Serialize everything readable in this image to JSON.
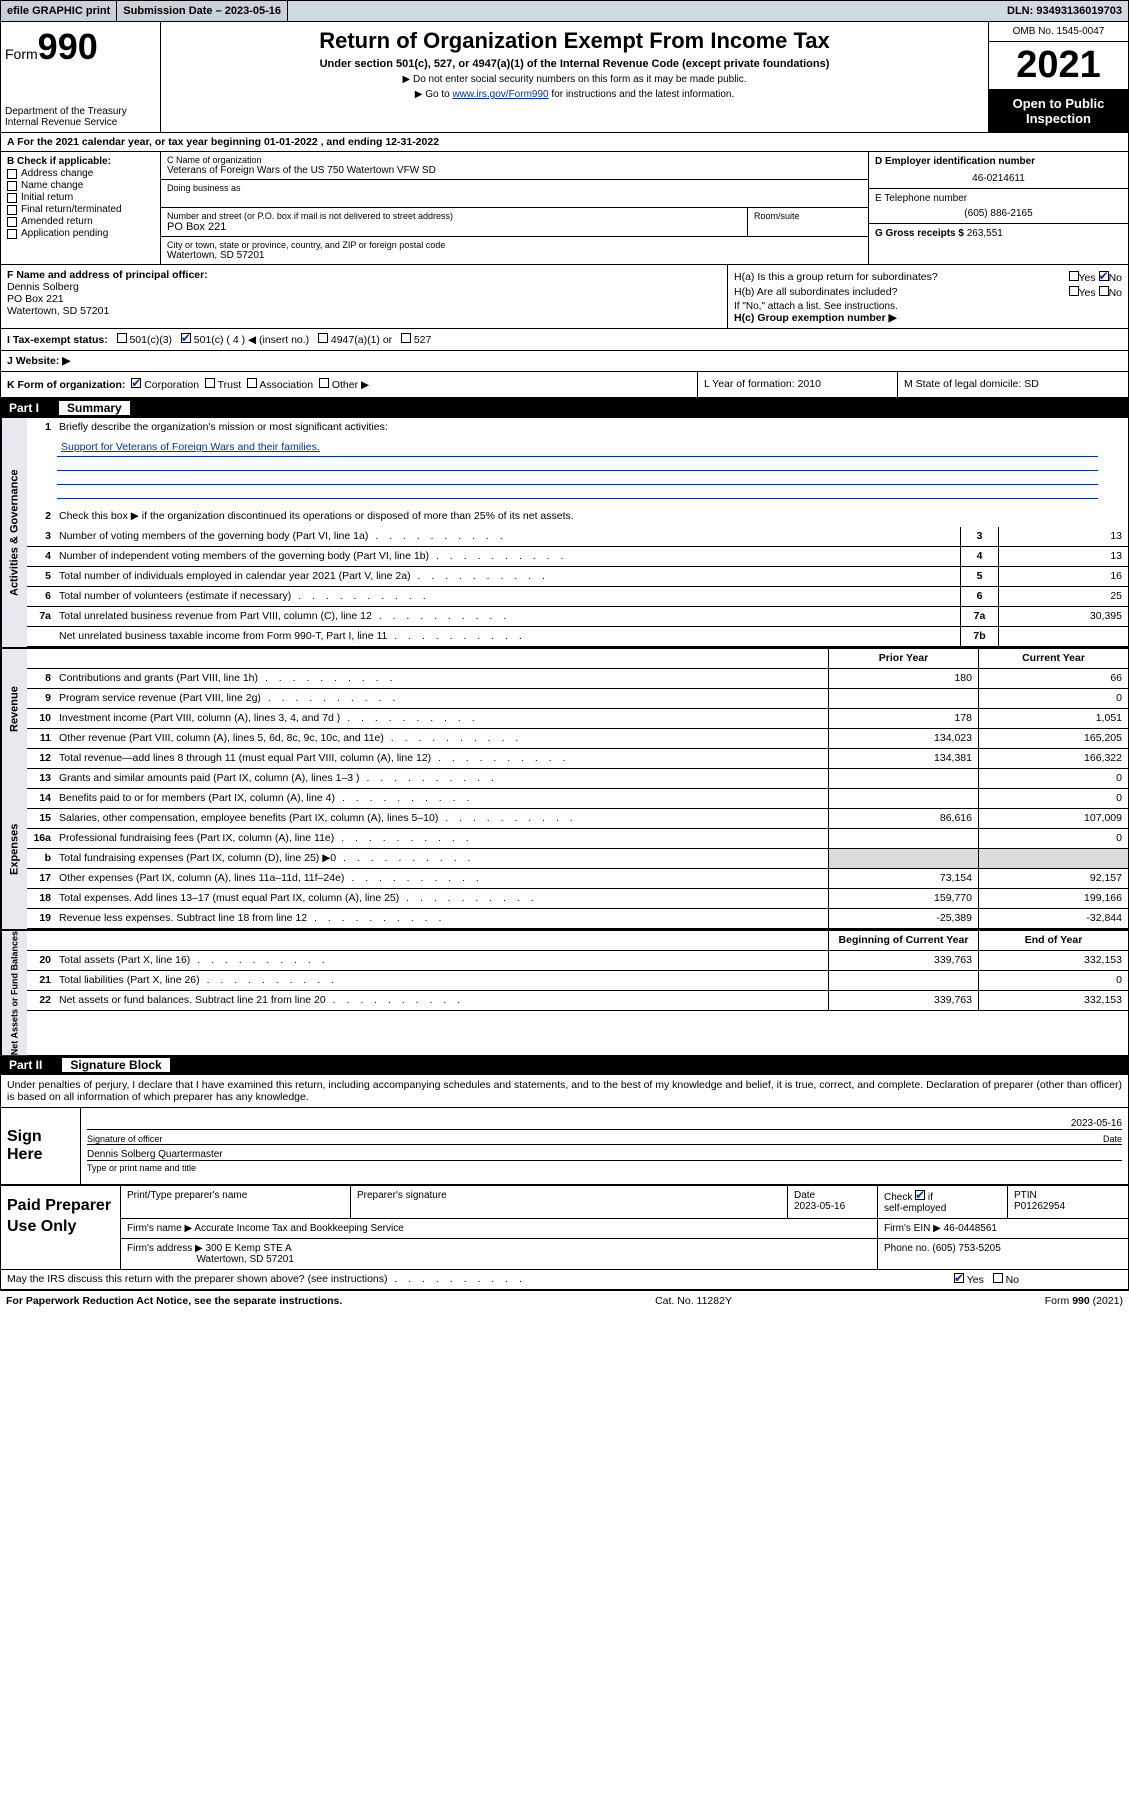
{
  "topbar": {
    "efile": "efile GRAPHIC print",
    "submission_label": "Submission Date – 2023-05-16",
    "dln": "DLN: 93493136019703"
  },
  "header": {
    "form_word": "Form",
    "form_num": "990",
    "dept": "Department of the Treasury\nInternal Revenue Service",
    "title": "Return of Organization Exempt From Income Tax",
    "sub": "Under section 501(c), 527, or 4947(a)(1) of the Internal Revenue Code (except private foundations)",
    "inst1": "▶ Do not enter social security numbers on this form as it may be made public.",
    "inst2_pre": "▶ Go to ",
    "inst2_link": "www.irs.gov/Form990",
    "inst2_post": " for instructions and the latest information.",
    "omb": "OMB No. 1545-0047",
    "year": "2021",
    "open": "Open to Public Inspection"
  },
  "row_a": "A For the 2021 calendar year, or tax year beginning 01-01-2022   , and ending 12-31-2022",
  "col_b": {
    "label": "B Check if applicable:",
    "items": [
      "Address change",
      "Name change",
      "Initial return",
      "Final return/terminated",
      "Amended return",
      "Application pending"
    ]
  },
  "col_c": {
    "name_label": "C Name of organization",
    "name": "Veterans of Foreign Wars of the US 750 Watertown VFW SD",
    "dba_label": "Doing business as",
    "addr_label": "Number and street (or P.O. box if mail is not delivered to street address)",
    "room_label": "Room/suite",
    "addr": "PO Box 221",
    "city_label": "City or town, state or province, country, and ZIP or foreign postal code",
    "city": "Watertown, SD  57201"
  },
  "col_d": {
    "ein_label": "D Employer identification number",
    "ein": "46-0214611",
    "phone_label": "E Telephone number",
    "phone": "(605) 886-2165",
    "gross_label": "G Gross receipts $",
    "gross": "263,551"
  },
  "sec_f": {
    "label": "F  Name and address of principal officer:",
    "name": "Dennis Solberg",
    "addr1": "PO Box 221",
    "addr2": "Watertown, SD  57201"
  },
  "sec_h": {
    "ha": "H(a)  Is this a group return for subordinates?",
    "hb": "H(b)  Are all subordinates included?",
    "hb_note": "If \"No,\" attach a list. See instructions.",
    "hc": "H(c)  Group exemption number ▶",
    "yes": "Yes",
    "no": "No"
  },
  "sec_i": {
    "label": "I    Tax-exempt status:",
    "o1": "501(c)(3)",
    "o2": "501(c) ( 4 ) ◀ (insert no.)",
    "o3": "4947(a)(1) or",
    "o4": "527"
  },
  "sec_j": "J    Website: ▶",
  "sec_k": {
    "left_label": "K Form of organization:",
    "corp": "Corporation",
    "trust": "Trust",
    "assoc": "Association",
    "other": "Other ▶",
    "mid": "L Year of formation: 2010",
    "right": "M State of legal domicile: SD"
  },
  "part1": {
    "num": "Part I",
    "title": "Summary"
  },
  "summary": {
    "l1": "Briefly describe the organization's mission or most significant activities:",
    "mission": "Support for Veterans of Foreign Wars and their families.",
    "l2": "Check this box ▶        if the organization discontinued its operations or disposed of more than 25% of its net assets.",
    "rows_single": [
      {
        "n": "3",
        "t": "Number of voting members of the governing body (Part VI, line 1a)",
        "c": "3",
        "v": "13"
      },
      {
        "n": "4",
        "t": "Number of independent voting members of the governing body (Part VI, line 1b)",
        "c": "4",
        "v": "13"
      },
      {
        "n": "5",
        "t": "Total number of individuals employed in calendar year 2021 (Part V, line 2a)",
        "c": "5",
        "v": "16"
      },
      {
        "n": "6",
        "t": "Total number of volunteers (estimate if necessary)",
        "c": "6",
        "v": "25"
      },
      {
        "n": "7a",
        "t": "Total unrelated business revenue from Part VIII, column (C), line 12",
        "c": "7a",
        "v": "30,395"
      },
      {
        "n": "",
        "t": "Net unrelated business taxable income from Form 990-T, Part I, line 11",
        "c": "7b",
        "v": ""
      }
    ],
    "col_prior": "Prior Year",
    "col_curr": "Current Year",
    "revenue": [
      {
        "n": "8",
        "t": "Contributions and grants (Part VIII, line 1h)",
        "p": "180",
        "c": "66"
      },
      {
        "n": "9",
        "t": "Program service revenue (Part VIII, line 2g)",
        "p": "",
        "c": "0"
      },
      {
        "n": "10",
        "t": "Investment income (Part VIII, column (A), lines 3, 4, and 7d )",
        "p": "178",
        "c": "1,051"
      },
      {
        "n": "11",
        "t": "Other revenue (Part VIII, column (A), lines 5, 6d, 8c, 9c, 10c, and 11e)",
        "p": "134,023",
        "c": "165,205"
      },
      {
        "n": "12",
        "t": "Total revenue—add lines 8 through 11 (must equal Part VIII, column (A), line 12)",
        "p": "134,381",
        "c": "166,322"
      }
    ],
    "expenses": [
      {
        "n": "13",
        "t": "Grants and similar amounts paid (Part IX, column (A), lines 1–3 )",
        "p": "",
        "c": "0"
      },
      {
        "n": "14",
        "t": "Benefits paid to or for members (Part IX, column (A), line 4)",
        "p": "",
        "c": "0"
      },
      {
        "n": "15",
        "t": "Salaries, other compensation, employee benefits (Part IX, column (A), lines 5–10)",
        "p": "86,616",
        "c": "107,009"
      },
      {
        "n": "16a",
        "t": "Professional fundraising fees (Part IX, column (A), line 11e)",
        "p": "",
        "c": "0"
      },
      {
        "n": "b",
        "t": "Total fundraising expenses (Part IX, column (D), line 25) ▶0",
        "p": "GREY",
        "c": "GREY"
      },
      {
        "n": "17",
        "t": "Other expenses (Part IX, column (A), lines 11a–11d, 11f–24e)",
        "p": "73,154",
        "c": "92,157"
      },
      {
        "n": "18",
        "t": "Total expenses. Add lines 13–17 (must equal Part IX, column (A), line 25)",
        "p": "159,770",
        "c": "199,166"
      },
      {
        "n": "19",
        "t": "Revenue less expenses. Subtract line 18 from line 12",
        "p": "-25,389",
        "c": "-32,844"
      }
    ],
    "col_beg": "Beginning of Current Year",
    "col_end": "End of Year",
    "netassets": [
      {
        "n": "20",
        "t": "Total assets (Part X, line 16)",
        "p": "339,763",
        "c": "332,153"
      },
      {
        "n": "21",
        "t": "Total liabilities (Part X, line 26)",
        "p": "",
        "c": "0"
      },
      {
        "n": "22",
        "t": "Net assets or fund balances. Subtract line 21 from line 20",
        "p": "339,763",
        "c": "332,153"
      }
    ]
  },
  "side_labels": {
    "gov": "Activities & Governance",
    "rev": "Revenue",
    "exp": "Expenses",
    "net": "Net Assets or Fund Balances"
  },
  "part2": {
    "num": "Part II",
    "title": "Signature Block"
  },
  "sig": {
    "intro": "Under penalties of perjury, I declare that I have examined this return, including accompanying schedules and statements, and to the best of my knowledge and belief, it is true, correct, and complete. Declaration of preparer (other than officer) is based on all information of which preparer has any knowledge.",
    "here": "Sign Here",
    "date": "2023-05-16",
    "sig_of": "Signature of officer",
    "date_lbl": "Date",
    "name": "Dennis Solberg Quartermaster",
    "name_lbl": "Type or print name and title"
  },
  "paid": {
    "label": "Paid Preparer Use Only",
    "h1": "Print/Type preparer's name",
    "h2": "Preparer's signature",
    "h3": "Date",
    "date": "2023-05-16",
    "h4": "Check         if self-employed",
    "h5": "PTIN",
    "ptin": "P01262954",
    "firm_lbl": "Firm's name      ▶",
    "firm": "Accurate Income Tax and Bookkeeping Service",
    "ein_lbl": "Firm's EIN ▶",
    "ein": "46-0448561",
    "addr_lbl": "Firm's address ▶",
    "addr1": "300 E Kemp STE A",
    "addr2": "Watertown, SD 57201",
    "phone_lbl": "Phone no.",
    "phone": "(605) 753-5205"
  },
  "bottom": {
    "q": "May the IRS discuss this return with the preparer shown above? (see instructions)",
    "yes": "Yes",
    "no": "No"
  },
  "footer": {
    "left": "For Paperwork Reduction Act Notice, see the separate instructions.",
    "mid": "Cat. No. 11282Y",
    "right": "Form 990 (2021)"
  }
}
